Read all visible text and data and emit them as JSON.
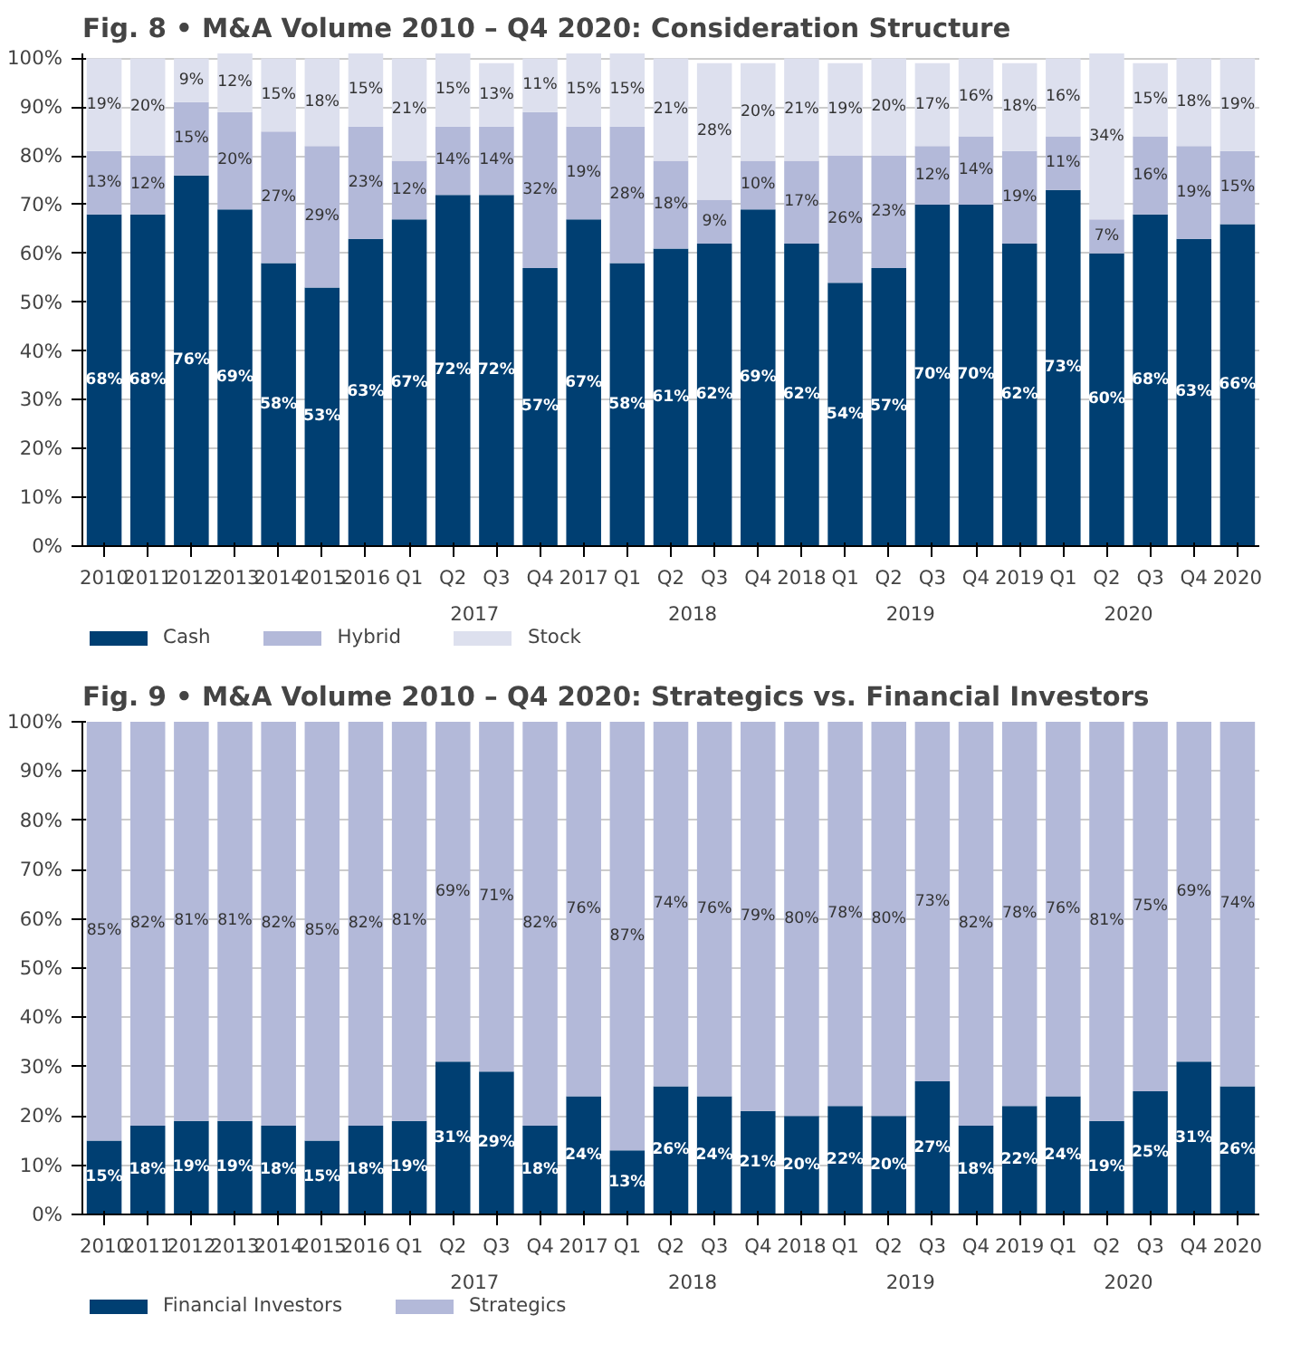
{
  "chart_data": [
    {
      "type": "bar",
      "stacked": true,
      "title": "Fig. 8 •  M&A Volume 2010 – Q4 2020: Consideration Structure",
      "categories": [
        "2010",
        "2011",
        "2012",
        "2013",
        "2014",
        "2015",
        "2016",
        "Q1",
        "Q2",
        "Q3",
        "Q4",
        "2017",
        "Q1",
        "Q2",
        "Q3",
        "Q4",
        "2018",
        "Q1",
        "Q2",
        "Q3",
        "Q4",
        "2019",
        "Q1",
        "Q2",
        "Q3",
        "Q4",
        "2020"
      ],
      "series": [
        {
          "name": "Cash",
          "color": "#003f72",
          "values": [
            68,
            68,
            76,
            69,
            58,
            53,
            63,
            67,
            72,
            72,
            57,
            67,
            58,
            61,
            62,
            69,
            62,
            54,
            57,
            70,
            70,
            62,
            73,
            60,
            68,
            63,
            66
          ],
          "value_labels": [
            "68%",
            "68%",
            "76%",
            "69%",
            "58%",
            "53%",
            "63%",
            "67%",
            "72%",
            "72%",
            "57%",
            "67%",
            "58%",
            "61%",
            "62%",
            "69%",
            "62%",
            "54%",
            "57%",
            "70%",
            "70%",
            "62%",
            "73%",
            "60%",
            "68%",
            "63%",
            "66%"
          ]
        },
        {
          "name": "Hybrid",
          "color": "#b3b9d9",
          "values": [
            13,
            12,
            15,
            20,
            27,
            29,
            23,
            12,
            14,
            14,
            32,
            19,
            28,
            18,
            9,
            10,
            17,
            26,
            23,
            12,
            14,
            19,
            11,
            7,
            16,
            19,
            15
          ],
          "value_labels": [
            "13%",
            "12%",
            "15%",
            "20%",
            "27%",
            "29%",
            "23%",
            "12%",
            "14%",
            "14%",
            "32%",
            "19%",
            "28%",
            "18%",
            "9%",
            "10%",
            "17%",
            "26%",
            "23%",
            "12%",
            "14%",
            "19%",
            "11%",
            "7%",
            "16%",
            "19%",
            "15%"
          ]
        },
        {
          "name": "Stock",
          "color": "#dde0ee",
          "values": [
            19,
            20,
            9,
            12,
            15,
            18,
            15,
            21,
            15,
            13,
            11,
            15,
            15,
            21,
            28,
            20,
            21,
            19,
            20,
            17,
            16,
            18,
            16,
            34,
            15,
            18,
            19
          ],
          "value_labels": [
            "19%",
            "20%",
            "9%",
            "12%",
            "15%",
            "18%",
            "15%",
            "21%",
            "15%",
            "13%",
            "11%",
            "15%",
            "15%",
            "21%",
            "28%",
            "20%",
            "21%",
            "19%",
            "20%",
            "17%",
            "16%",
            "18%",
            "16%",
            "34%",
            "15%",
            "18%",
            "19%"
          ]
        }
      ],
      "ylim": [
        0,
        101
      ],
      "yticks": [
        {
          "value": 0,
          "label": "0%"
        },
        {
          "value": 10,
          "label": "10%"
        },
        {
          "value": 20,
          "label": "20%"
        },
        {
          "value": 30,
          "label": "30%"
        },
        {
          "value": 40,
          "label": "40%"
        },
        {
          "value": 50,
          "label": "50%"
        },
        {
          "value": 60,
          "label": "60%"
        },
        {
          "value": 70,
          "label": "70%"
        },
        {
          "value": 80,
          "label": "80%"
        },
        {
          "value": 90,
          "label": "90%"
        },
        {
          "value": 100,
          "label": "100%"
        }
      ],
      "grid": "y",
      "legend": "bottom",
      "annotations": [
        "2017",
        "2018",
        "2019",
        "2020"
      ]
    },
    {
      "type": "bar",
      "stacked": true,
      "title": "Fig. 9 •  M&A Volume 2010 – Q4 2020: Strategics vs. Financial Investors",
      "categories": [
        "2010",
        "2011",
        "2012",
        "2013",
        "2014",
        "2015",
        "2016",
        "Q1",
        "Q2",
        "Q3",
        "Q4",
        "2017",
        "Q1",
        "Q2",
        "Q3",
        "Q4",
        "2018",
        "Q1",
        "Q2",
        "Q3",
        "Q4",
        "2019",
        "Q1",
        "Q2",
        "Q3",
        "Q4",
        "2020"
      ],
      "series": [
        {
          "name": "Financial Investors",
          "color": "#003f72",
          "values": [
            15,
            18,
            19,
            19,
            18,
            15,
            18,
            19,
            31,
            29,
            18,
            24,
            13,
            26,
            24,
            21,
            20,
            22,
            20,
            27,
            18,
            22,
            24,
            19,
            25,
            31,
            26
          ],
          "value_labels": [
            "15%",
            "18%",
            "19%",
            "19%",
            "18%",
            "15%",
            "18%",
            "19%",
            "31%",
            "29%",
            "18%",
            "24%",
            "13%",
            "26%",
            "24%",
            "21%",
            "20%",
            "22%",
            "20%",
            "27%",
            "18%",
            "22%",
            "24%",
            "19%",
            "25%",
            "31%",
            "26%"
          ]
        },
        {
          "name": "Strategics",
          "color": "#b3b9d9",
          "values": [
            85,
            82,
            81,
            81,
            82,
            85,
            82,
            81,
            69,
            71,
            82,
            76,
            87,
            74,
            76,
            79,
            80,
            78,
            80,
            73,
            82,
            78,
            76,
            81,
            75,
            69,
            74
          ],
          "value_labels": [
            "85%",
            "82%",
            "81%",
            "81%",
            "82%",
            "85%",
            "82%",
            "81%",
            "69%",
            "71%",
            "82%",
            "76%",
            "87%",
            "74%",
            "76%",
            "79%",
            "80%",
            "78%",
            "80%",
            "73%",
            "82%",
            "78%",
            "76%",
            "81%",
            "75%",
            "69%",
            "74%"
          ]
        }
      ],
      "ylim": [
        0,
        100
      ],
      "yticks": [
        {
          "value": 0,
          "label": "0%"
        },
        {
          "value": 10,
          "label": "10%"
        },
        {
          "value": 20,
          "label": "20%"
        },
        {
          "value": 30,
          "label": "30%"
        },
        {
          "value": 40,
          "label": "40%"
        },
        {
          "value": 50,
          "label": "50%"
        },
        {
          "value": 60,
          "label": "60%"
        },
        {
          "value": 70,
          "label": "70%"
        },
        {
          "value": 80,
          "label": "80%"
        },
        {
          "value": 90,
          "label": "90%"
        },
        {
          "value": 100,
          "label": "100%"
        }
      ],
      "grid": "y",
      "legend": "bottom",
      "annotations": [
        "2017",
        "2018",
        "2019",
        "2020"
      ]
    }
  ]
}
